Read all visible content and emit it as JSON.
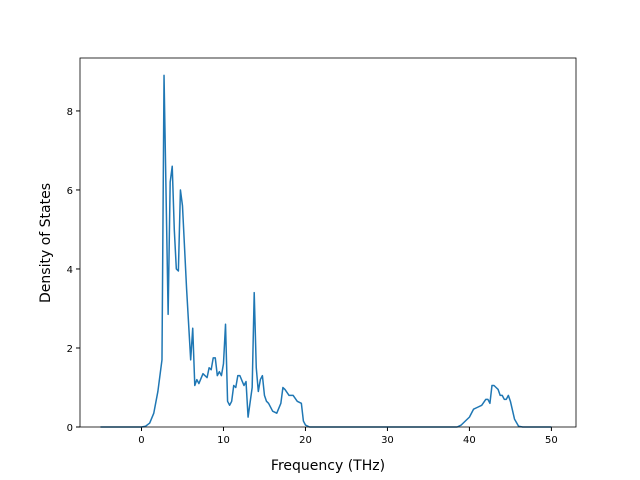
{
  "chart_data": {
    "type": "line",
    "xlabel": "Frequency (THz)",
    "ylabel": "Density of States",
    "x": [
      -5,
      0,
      0.5,
      1,
      1.5,
      2,
      2.5,
      2.75,
      3.25,
      3.5,
      3.75,
      4,
      4.25,
      4.5,
      4.75,
      5,
      5.5,
      6,
      6.25,
      6.5,
      6.75,
      7,
      7.5,
      8,
      8.25,
      8.5,
      8.75,
      9,
      9.25,
      9.5,
      9.75,
      10,
      10.25,
      10.5,
      10.75,
      11,
      11.25,
      11.5,
      11.75,
      12,
      12.5,
      12.75,
      13,
      13.5,
      13.75,
      14,
      14.25,
      14.5,
      14.75,
      15,
      15.25,
      15.5,
      16,
      16.5,
      17,
      17.25,
      17.5,
      18,
      18.5,
      19,
      19.5,
      19.75,
      20,
      20.5,
      38.5,
      39,
      40,
      40.5,
      41,
      41.5,
      42,
      42.25,
      42.5,
      42.75,
      43,
      43.25,
      43.5,
      43.75,
      44,
      44.25,
      44.5,
      44.75,
      45,
      45.5,
      46,
      46.5,
      50
    ],
    "series": [
      {
        "color": "#1f77b4",
        "values": [
          0,
          0,
          0.02,
          0.1,
          0.35,
          0.9,
          1.7,
          8.9,
          2.85,
          6.2,
          6.6,
          5.0,
          4.0,
          3.95,
          6.0,
          5.6,
          3.5,
          1.7,
          2.5,
          1.05,
          1.2,
          1.1,
          1.35,
          1.25,
          1.5,
          1.45,
          1.75,
          1.75,
          1.3,
          1.4,
          1.3,
          1.6,
          2.6,
          0.65,
          0.55,
          0.65,
          1.05,
          1.0,
          1.3,
          1.3,
          1.05,
          1.15,
          0.25,
          1.0,
          3.4,
          1.5,
          0.9,
          1.2,
          1.3,
          0.8,
          0.65,
          0.6,
          0.4,
          0.35,
          0.6,
          1.0,
          0.95,
          0.8,
          0.8,
          0.65,
          0.6,
          0.15,
          0.05,
          0,
          0,
          0.05,
          0.25,
          0.45,
          0.5,
          0.55,
          0.7,
          0.7,
          0.6,
          1.05,
          1.05,
          1.0,
          0.95,
          0.8,
          0.8,
          0.7,
          0.7,
          0.8,
          0.65,
          0.2,
          0.02,
          0,
          0
        ]
      }
    ],
    "xlim": [
      -7.5,
      53
    ],
    "xticks": [
      0,
      10,
      20,
      30,
      40,
      50
    ],
    "ylim": [
      0,
      9.34
    ],
    "yticks": [
      0,
      2,
      4,
      6,
      8
    ]
  }
}
